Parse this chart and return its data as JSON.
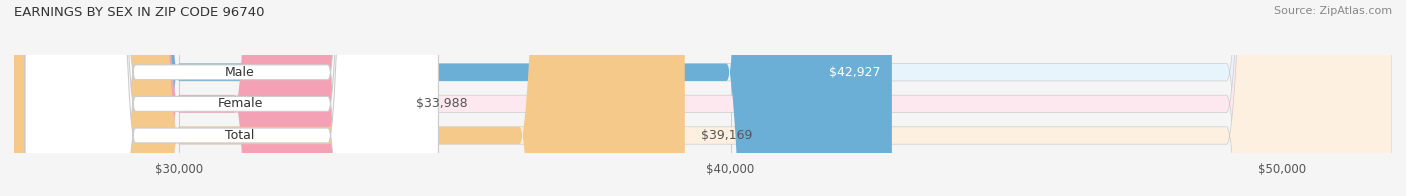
{
  "title": "EARNINGS BY SEX IN ZIP CODE 96740",
  "source": "Source: ZipAtlas.com",
  "categories": [
    "Male",
    "Female",
    "Total"
  ],
  "values": [
    42927,
    33988,
    39169
  ],
  "bar_colors": [
    "#6baed6",
    "#f4a0b5",
    "#f5c98a"
  ],
  "bar_bg_colors": [
    "#e8f4fb",
    "#fde8ef",
    "#fdf0e0"
  ],
  "label_colors": [
    "#ffffff",
    "#555555",
    "#555555"
  ],
  "value_labels": [
    "$42,927",
    "$33,988",
    "$39,169"
  ],
  "xlim": [
    27000,
    52000
  ],
  "xticks": [
    30000,
    40000,
    50000
  ],
  "xtick_labels": [
    "$30,000",
    "$40,000",
    "$50,000"
  ],
  "figsize": [
    14.06,
    1.96
  ],
  "dpi": 100,
  "bg_color": "#f5f5f5",
  "bar_height": 0.55,
  "title_fontsize": 9.5,
  "source_fontsize": 8,
  "tick_fontsize": 8.5,
  "label_fontsize": 9,
  "value_fontsize": 9
}
